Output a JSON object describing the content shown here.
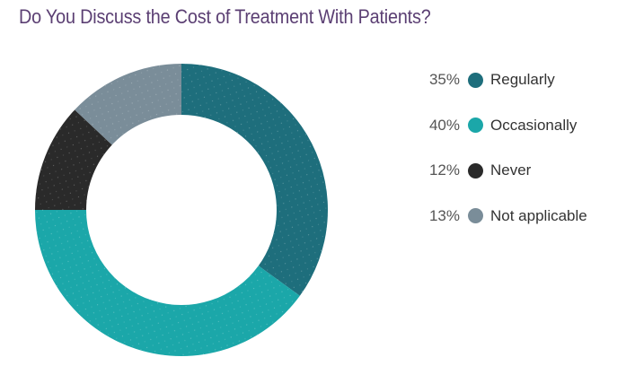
{
  "chart_data": {
    "type": "pie",
    "variant": "donut",
    "title": "Do You Discuss the Cost of Treatment With Patients?",
    "categories": [
      "Regularly",
      "Occasionally",
      "Never",
      "Not applicable"
    ],
    "values": [
      35,
      40,
      12,
      13
    ],
    "value_labels": [
      "35%",
      "40%",
      "12%",
      "13%"
    ],
    "colors": [
      "#1e6e7c",
      "#1ba7a9",
      "#2a2a2a",
      "#7a8d99"
    ],
    "legend_position": "right"
  }
}
